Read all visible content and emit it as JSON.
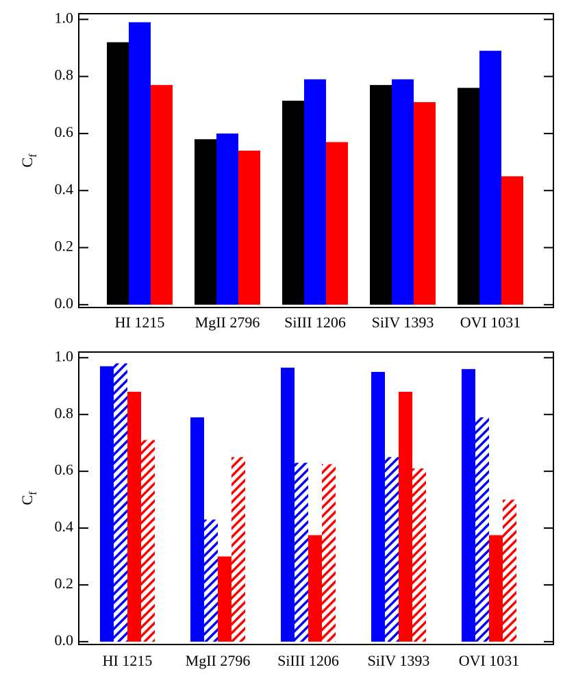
{
  "chart_data": [
    {
      "type": "bar",
      "categories": [
        "HI 1215",
        "MgII 2796",
        "SiIII 1206",
        "SiIV 1393",
        "OVI 1031"
      ],
      "ylabel": {
        "text": "C",
        "subscript": "f"
      },
      "ylim": [
        -0.01,
        1.02
      ],
      "yticks": [
        {
          "value": 0,
          "label": "0.0"
        },
        {
          "value": 0.2,
          "label": "0.2"
        },
        {
          "value": 0.4,
          "label": "0.4"
        },
        {
          "value": 0.6,
          "label": "0.6"
        },
        {
          "value": 0.8,
          "label": "0.8"
        },
        {
          "value": 1,
          "label": "1.0"
        }
      ],
      "series": [
        {
          "color": "#000000",
          "hatch": false,
          "values": [
            0.92,
            0.58,
            0.715,
            0.77,
            0.76
          ]
        },
        {
          "color": "#0000ff",
          "hatch": false,
          "values": [
            0.99,
            0.6,
            0.79,
            0.79,
            0.89
          ]
        },
        {
          "color": "#ff0000",
          "hatch": false,
          "values": [
            0.77,
            0.54,
            0.57,
            0.71,
            0.45
          ]
        }
      ]
    },
    {
      "type": "bar",
      "categories": [
        "HI 1215",
        "MgII 2796",
        "SiIII 1206",
        "SiIV 1393",
        "OVI 1031"
      ],
      "ylabel": {
        "text": "C",
        "subscript": "f"
      },
      "ylim": [
        -0.01,
        1.02
      ],
      "yticks": [
        {
          "value": 0,
          "label": "0.0"
        },
        {
          "value": 0.2,
          "label": "0.2"
        },
        {
          "value": 0.4,
          "label": "0.4"
        },
        {
          "value": 0.6,
          "label": "0.6"
        },
        {
          "value": 0.8,
          "label": "0.8"
        },
        {
          "value": 1,
          "label": "1.0"
        }
      ],
      "series": [
        {
          "color": "#0000ff",
          "hatch": false,
          "values": [
            0.97,
            0.79,
            0.965,
            0.95,
            0.96
          ]
        },
        {
          "color": "#0000ff",
          "hatch": true,
          "values": [
            0.98,
            0.43,
            0.63,
            0.65,
            0.79
          ]
        },
        {
          "color": "#ff0000",
          "hatch": false,
          "values": [
            0.88,
            0.3,
            0.375,
            0.88,
            0.375
          ]
        },
        {
          "color": "#ff0000",
          "hatch": true,
          "values": [
            0.71,
            0.65,
            0.625,
            0.61,
            0.5
          ]
        }
      ]
    }
  ]
}
